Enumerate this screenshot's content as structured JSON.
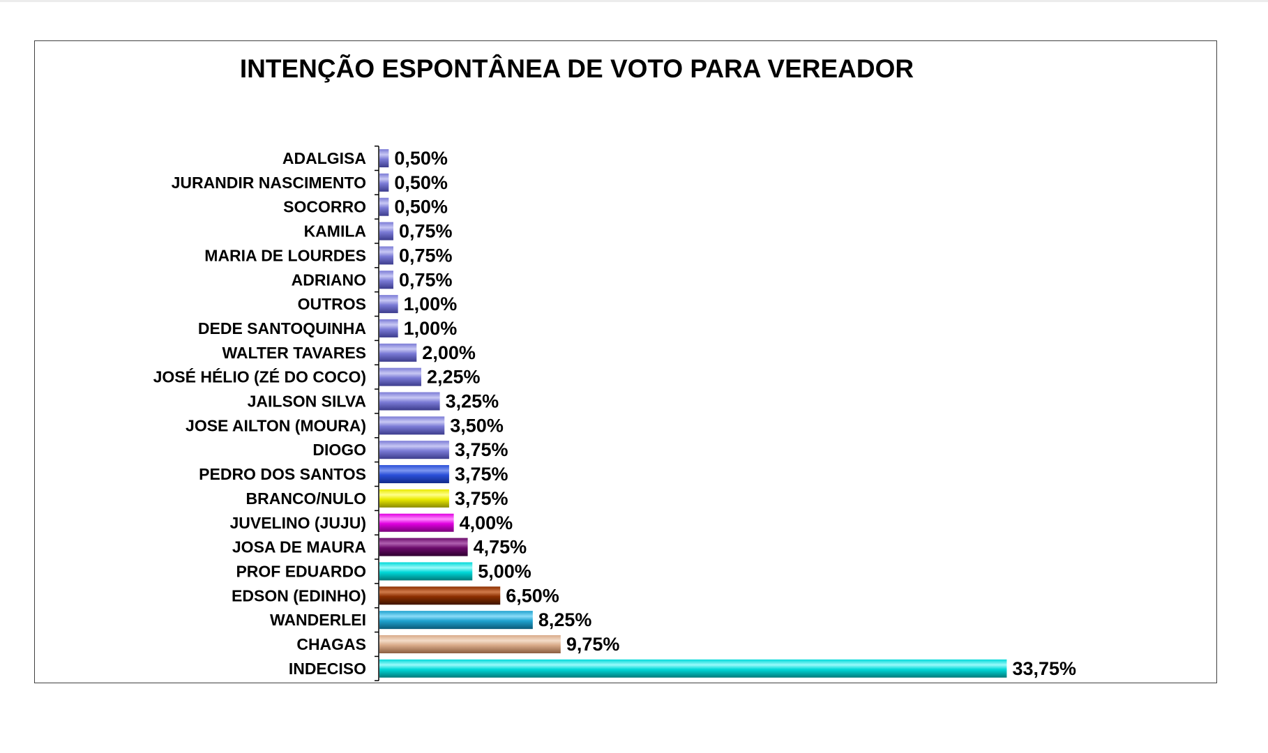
{
  "chart_data": {
    "type": "bar",
    "orientation": "horizontal",
    "title": "INTENÇÃO ESPONTÂNEA DE VOTO PARA VEREADOR",
    "xlabel": "",
    "ylabel": "",
    "grid": false,
    "legend": "none",
    "xlim": [
      0,
      35
    ],
    "categories": [
      "ADALGISA",
      "JURANDIR NASCIMENTO",
      "SOCORRO",
      "KAMILA",
      "MARIA DE LOURDES",
      "ADRIANO",
      "OUTROS",
      "DEDE SANTOQUINHA",
      "WALTER TAVARES",
      "JOSÉ HÉLIO (ZÉ DO COCO)",
      "JAILSON SILVA",
      "JOSE AILTON (MOURA)",
      "DIOGO",
      "PEDRO DOS SANTOS",
      "BRANCO/NULO",
      "JUVELINO (JUJU)",
      "JOSA DE MAURA",
      "PROF EDUARDO",
      "EDSON (EDINHO)",
      "WANDERLEI",
      "CHAGAS",
      "INDECISO"
    ],
    "values": [
      0.5,
      0.5,
      0.5,
      0.75,
      0.75,
      0.75,
      1.0,
      1.0,
      2.0,
      2.25,
      3.25,
      3.5,
      3.75,
      3.75,
      3.75,
      4.0,
      4.75,
      5.0,
      6.5,
      8.25,
      9.75,
      33.75
    ],
    "value_labels": [
      "0,50%",
      "0,50%",
      "0,50%",
      "0,75%",
      "0,75%",
      "0,75%",
      "1,00%",
      "1,00%",
      "2,00%",
      "2,25%",
      "3,25%",
      "3,50%",
      "3,75%",
      "3,75%",
      "3,75%",
      "4,00%",
      "4,75%",
      "5,00%",
      "6,50%",
      "8,25%",
      "9,75%",
      "33,75%"
    ],
    "colors": [
      "#7b7bd6",
      "#7b7bd6",
      "#7b7bd6",
      "#7b7bd6",
      "#7b7bd6",
      "#7b7bd6",
      "#7b7bd6",
      "#7b7bd6",
      "#7b7bd6",
      "#7b7bd6",
      "#7b7bd6",
      "#7b7bd6",
      "#7b7bd6",
      "#2a4fd8",
      "#eaea00",
      "#e000e0",
      "#6a0a6a",
      "#00d8d8",
      "#8b2e00",
      "#1fa2cf",
      "#d9ab8a",
      "#00d8d8"
    ],
    "colors_dark": [
      "#3c3c8c",
      "#3c3c8c",
      "#3c3c8c",
      "#3c3c8c",
      "#3c3c8c",
      "#3c3c8c",
      "#3c3c8c",
      "#3c3c8c",
      "#3c3c8c",
      "#3c3c8c",
      "#3c3c8c",
      "#3c3c8c",
      "#3c3c8c",
      "#122a8a",
      "#8a8a00",
      "#7a007a",
      "#300030",
      "#007a7a",
      "#3e1400",
      "#0b5a78",
      "#8a5e40",
      "#007a7a"
    ],
    "colors_light": [
      "#c8c8f4",
      "#c8c8f4",
      "#c8c8f4",
      "#c8c8f4",
      "#c8c8f4",
      "#c8c8f4",
      "#c8c8f4",
      "#c8c8f4",
      "#c8c8f4",
      "#c8c8f4",
      "#c8c8f4",
      "#c8c8f4",
      "#c8c8f4",
      "#7d96f0",
      "#ffff8a",
      "#ff8aff",
      "#b060b0",
      "#9afafa",
      "#d07a4a",
      "#8adcf8",
      "#f3dcc8",
      "#9afafa"
    ]
  }
}
